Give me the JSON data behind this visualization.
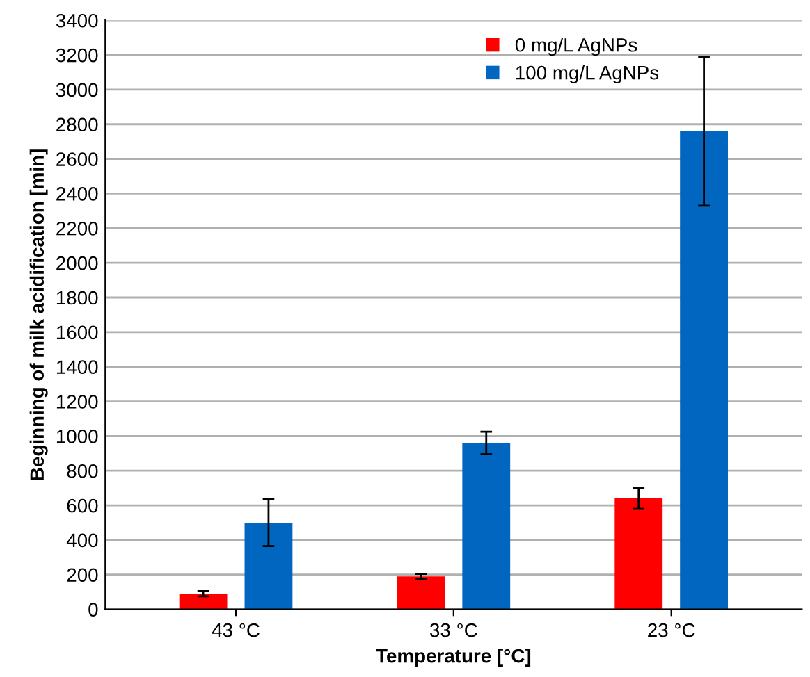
{
  "chart_data": {
    "type": "bar",
    "xlabel": "Temperature [°C]",
    "ylabel": "Beginning of milk acidification [min]",
    "categories": [
      "43 °C",
      "33 °C",
      "23 °C"
    ],
    "series": [
      {
        "name": "0 mg/L AgNPs",
        "color": "#ff0000",
        "values": [
          90,
          190,
          640
        ],
        "errors": [
          15,
          15,
          60
        ]
      },
      {
        "name": "100 mg/L AgNPs",
        "color": "#0066bf",
        "values": [
          500,
          960,
          2760
        ],
        "errors": [
          135,
          65,
          430
        ]
      }
    ],
    "ylim": [
      0,
      3400
    ],
    "yticks": [
      0,
      200,
      400,
      600,
      800,
      1000,
      1200,
      1400,
      1600,
      1800,
      2000,
      2200,
      2400,
      2600,
      2800,
      3000,
      3200,
      3400
    ],
    "grid": "y",
    "legend": "top right"
  }
}
